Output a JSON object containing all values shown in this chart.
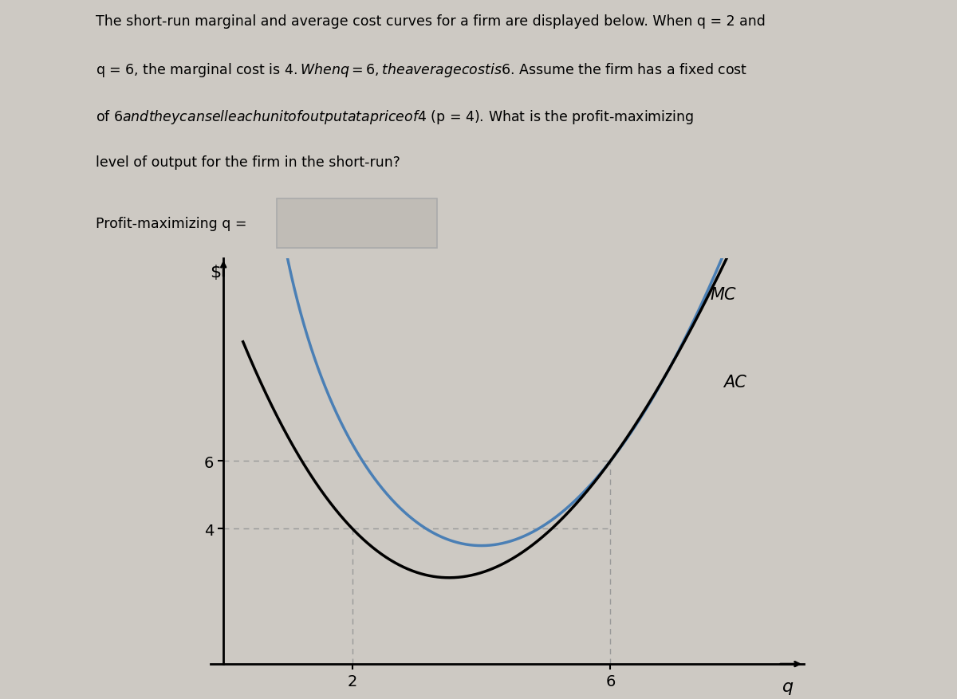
{
  "line1": "The short-run marginal and average cost curves for a firm are displayed below. When q = 2 and",
  "line2": "q = 6, the marginal cost is $4. When q = 6, the average cost is $6. Assume the firm has a fixed cost",
  "line3": "of $6 and they can sell each unit of output at a price of $4 (p = 4). What is the profit-maximizing",
  "line4": "level of output for the firm in the short-run?",
  "profit_label": "Profit-maximizing q =",
  "ylabel": "$",
  "xlabel": "q",
  "mc_label": "MC",
  "ac_label": "AC",
  "y_ticks": [
    4,
    6
  ],
  "x_ticks": [
    2,
    6
  ],
  "bg_color": "#cdc9c3",
  "mc_color": "#000000",
  "ac_color": "#4a7fb5",
  "dashed_color": "#999999",
  "box_facecolor": "#c0bcb6",
  "box_edgecolor": "#aaaaaa"
}
